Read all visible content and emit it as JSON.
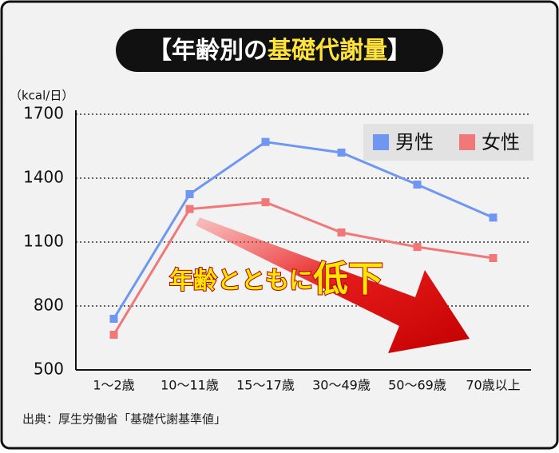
{
  "chart_data": {
    "type": "line",
    "title": [
      "【年齢別の",
      "基礎代謝量",
      "】"
    ],
    "y_unit": "（kcal/日）",
    "categories": [
      "1～2歳",
      "10～11歳",
      "15～17歳",
      "30～49歳",
      "50～69歳",
      "70歳以上"
    ],
    "series": [
      {
        "name": "男性",
        "color": "#6f96f0",
        "values": [
          740,
          1325,
          1570,
          1520,
          1370,
          1215
        ]
      },
      {
        "name": "女性",
        "color": "#f07878",
        "values": [
          665,
          1255,
          1287,
          1145,
          1077,
          1025
        ]
      }
    ],
    "ylim": [
      500,
      1700
    ],
    "yticks": [
      500,
      800,
      1100,
      1400,
      1700
    ],
    "grid": true,
    "legend": "top-right",
    "annotation": [
      "年齢とともに",
      "低下"
    ],
    "source": "出典：厚生労働省「基礎代謝基準値」"
  }
}
